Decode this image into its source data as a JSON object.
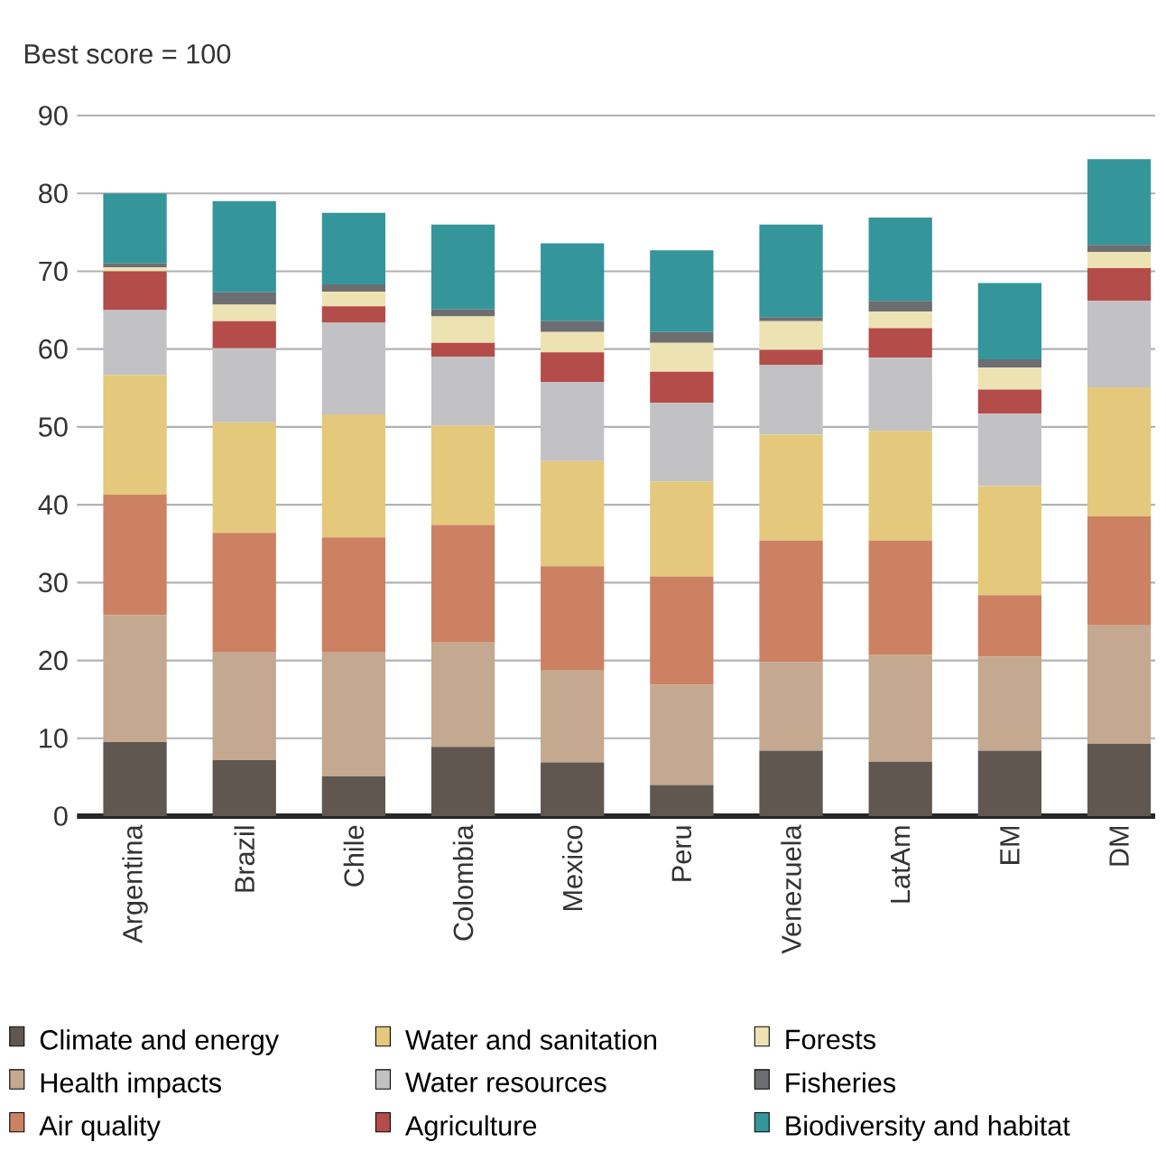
{
  "chart_data": {
    "type": "bar",
    "stacked": true,
    "ylabel": "Best score = 100",
    "categories": [
      "Argentina",
      "Brazil",
      "Chile",
      "Colombia",
      "Mexico",
      "Peru",
      "Venezuela",
      "LatAm",
      "EM",
      "DM"
    ],
    "ylim": [
      0,
      90
    ],
    "yticks": [
      0,
      10,
      20,
      30,
      40,
      50,
      60,
      70,
      80,
      90
    ],
    "grid": "y",
    "legend": "bottom",
    "series": [
      {
        "name": "Climate and energy",
        "color": "#5f5750",
        "values": [
          9.5,
          7.2,
          5.1,
          8.9,
          6.9,
          4.0,
          8.4,
          7.0,
          8.4,
          9.3
        ]
      },
      {
        "name": "Health impacts",
        "color": "#c4a88f",
        "values": [
          16.3,
          13.9,
          16.0,
          13.4,
          11.9,
          12.9,
          11.4,
          13.7,
          12.1,
          15.2
        ]
      },
      {
        "name": "Air quality",
        "color": "#cc8163",
        "values": [
          15.5,
          15.3,
          14.7,
          15.1,
          13.3,
          13.9,
          15.6,
          14.7,
          7.9,
          14.0
        ]
      },
      {
        "name": "Water and sanitation",
        "color": "#e4c87c",
        "values": [
          15.4,
          14.2,
          15.8,
          12.8,
          13.5,
          12.2,
          13.6,
          14.1,
          14.0,
          16.6
        ]
      },
      {
        "name": "Water resources",
        "color": "#c2c2c4",
        "values": [
          8.3,
          9.5,
          11.8,
          8.8,
          10.2,
          10.1,
          9.0,
          9.4,
          9.3,
          11.1
        ]
      },
      {
        "name": "Agriculture",
        "color": "#b44c49",
        "values": [
          5.0,
          3.5,
          2.1,
          1.8,
          3.8,
          4.0,
          1.9,
          3.8,
          3.1,
          4.2
        ]
      },
      {
        "name": "Forests",
        "color": "#ede3b2",
        "values": [
          0.5,
          2.1,
          1.9,
          3.4,
          2.6,
          3.7,
          3.7,
          2.1,
          2.8,
          2.1
        ]
      },
      {
        "name": "Fisheries",
        "color": "#6d6e71",
        "values": [
          0.5,
          1.6,
          0.9,
          0.9,
          1.4,
          1.4,
          0.5,
          1.4,
          1.1,
          0.9
        ]
      },
      {
        "name": "Biodiversity and habitat",
        "color": "#34959b",
        "values": [
          9.0,
          11.7,
          9.2,
          10.9,
          10.0,
          10.5,
          11.9,
          10.7,
          9.8,
          11.0
        ]
      }
    ]
  }
}
